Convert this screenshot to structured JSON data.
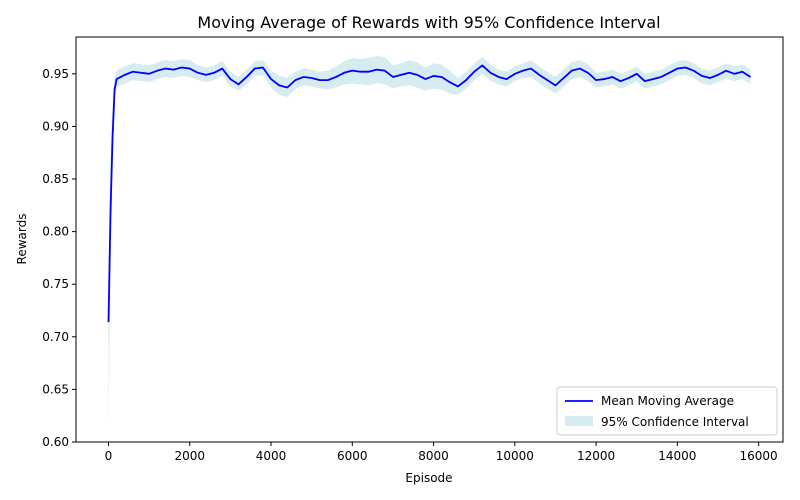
{
  "chart_data": {
    "type": "line",
    "title": "Moving Average of Rewards with 95% Confidence Interval",
    "xlabel": "Episode",
    "ylabel": "Rewards",
    "xlim": [
      -800,
      16600
    ],
    "ylim": [
      0.6,
      0.985
    ],
    "xticks": [
      0,
      2000,
      4000,
      6000,
      8000,
      10000,
      12000,
      14000,
      16000
    ],
    "xtick_labels": [
      "0",
      "2000",
      "4000",
      "6000",
      "8000",
      "10000",
      "12000",
      "14000",
      "16000"
    ],
    "yticks": [
      0.6,
      0.65,
      0.7,
      0.75,
      0.8,
      0.85,
      0.9,
      0.95
    ],
    "ytick_labels": [
      "0.60",
      "0.65",
      "0.70",
      "0.75",
      "0.80",
      "0.85",
      "0.90",
      "0.95"
    ],
    "grid": false,
    "legend_position": "lower-right",
    "series": [
      {
        "name": "Mean Moving Average",
        "kind": "line",
        "color": "#0000ff",
        "x": [
          0,
          50,
          100,
          150,
          200,
          300,
          400,
          600,
          800,
          1000,
          1200,
          1400,
          1600,
          1800,
          2000,
          2200,
          2400,
          2600,
          2800,
          3000,
          3200,
          3400,
          3600,
          3800,
          4000,
          4200,
          4400,
          4600,
          4800,
          5000,
          5200,
          5400,
          5600,
          5800,
          6000,
          6200,
          6400,
          6600,
          6800,
          7000,
          7200,
          7400,
          7600,
          7800,
          8000,
          8200,
          8400,
          8600,
          8800,
          9000,
          9200,
          9400,
          9600,
          9800,
          10000,
          10200,
          10400,
          10600,
          10800,
          11000,
          11200,
          11400,
          11600,
          11800,
          12000,
          12200,
          12400,
          12600,
          12800,
          13000,
          13200,
          13400,
          13600,
          13800,
          14000,
          14200,
          14400,
          14600,
          14800,
          15000,
          15200,
          15400,
          15600,
          15800
        ],
        "y": [
          0.714,
          0.82,
          0.89,
          0.935,
          0.945,
          0.947,
          0.949,
          0.952,
          0.951,
          0.95,
          0.953,
          0.955,
          0.954,
          0.956,
          0.955,
          0.951,
          0.949,
          0.951,
          0.955,
          0.945,
          0.94,
          0.947,
          0.955,
          0.956,
          0.945,
          0.939,
          0.937,
          0.944,
          0.947,
          0.946,
          0.944,
          0.944,
          0.947,
          0.951,
          0.953,
          0.952,
          0.952,
          0.954,
          0.953,
          0.947,
          0.949,
          0.951,
          0.949,
          0.945,
          0.948,
          0.947,
          0.942,
          0.938,
          0.944,
          0.952,
          0.958,
          0.951,
          0.947,
          0.945,
          0.95,
          0.953,
          0.955,
          0.949,
          0.944,
          0.939,
          0.946,
          0.953,
          0.955,
          0.951,
          0.944,
          0.945,
          0.947,
          0.943,
          0.946,
          0.95,
          0.943,
          0.945,
          0.947,
          0.951,
          0.955,
          0.956,
          0.953,
          0.948,
          0.946,
          0.949,
          0.953,
          0.95,
          0.952,
          0.947
        ]
      },
      {
        "name": "95% Confidence Interval",
        "kind": "band",
        "color": "#add8e6",
        "opacity": 0.5,
        "x": [
          0,
          50,
          100,
          150,
          200,
          300,
          400,
          600,
          800,
          1000,
          1200,
          1400,
          1600,
          1800,
          2000,
          2200,
          2400,
          2600,
          2800,
          3000,
          3200,
          3400,
          3600,
          3800,
          4000,
          4200,
          4400,
          4600,
          4800,
          5000,
          5200,
          5400,
          5600,
          5800,
          6000,
          6200,
          6400,
          6600,
          6800,
          7000,
          7200,
          7400,
          7600,
          7800,
          8000,
          8200,
          8400,
          8600,
          8800,
          9000,
          9200,
          9400,
          9600,
          9800,
          10000,
          10200,
          10400,
          10600,
          10800,
          11000,
          11200,
          11400,
          11600,
          11800,
          12000,
          12200,
          12400,
          12600,
          12800,
          13000,
          13200,
          13400,
          13600,
          13800,
          14000,
          14200,
          14400,
          14600,
          14800,
          15000,
          15200,
          15400,
          15600,
          15800
        ],
        "lower": [
          0.617,
          0.76,
          0.86,
          0.925,
          0.938,
          0.939,
          0.941,
          0.944,
          0.943,
          0.942,
          0.945,
          0.947,
          0.946,
          0.948,
          0.947,
          0.944,
          0.942,
          0.944,
          0.948,
          0.938,
          0.934,
          0.94,
          0.948,
          0.949,
          0.937,
          0.93,
          0.928,
          0.936,
          0.939,
          0.938,
          0.936,
          0.935,
          0.937,
          0.94,
          0.941,
          0.94,
          0.939,
          0.941,
          0.94,
          0.936,
          0.938,
          0.939,
          0.937,
          0.934,
          0.936,
          0.935,
          0.931,
          0.93,
          0.936,
          0.944,
          0.95,
          0.943,
          0.94,
          0.938,
          0.943,
          0.946,
          0.947,
          0.941,
          0.936,
          0.931,
          0.938,
          0.945,
          0.947,
          0.943,
          0.937,
          0.938,
          0.94,
          0.936,
          0.939,
          0.943,
          0.936,
          0.938,
          0.94,
          0.944,
          0.948,
          0.949,
          0.946,
          0.941,
          0.939,
          0.942,
          0.946,
          0.943,
          0.945,
          0.94
        ],
        "upper": [
          0.712,
          0.88,
          0.92,
          0.948,
          0.953,
          0.955,
          0.957,
          0.96,
          0.959,
          0.958,
          0.961,
          0.963,
          0.962,
          0.964,
          0.963,
          0.958,
          0.956,
          0.958,
          0.962,
          0.952,
          0.947,
          0.954,
          0.962,
          0.963,
          0.953,
          0.948,
          0.946,
          0.952,
          0.955,
          0.954,
          0.952,
          0.953,
          0.957,
          0.962,
          0.965,
          0.964,
          0.965,
          0.967,
          0.966,
          0.958,
          0.96,
          0.963,
          0.961,
          0.956,
          0.96,
          0.959,
          0.953,
          0.946,
          0.952,
          0.96,
          0.966,
          0.959,
          0.954,
          0.952,
          0.957,
          0.96,
          0.963,
          0.957,
          0.952,
          0.947,
          0.954,
          0.961,
          0.963,
          0.959,
          0.951,
          0.952,
          0.954,
          0.95,
          0.953,
          0.957,
          0.95,
          0.952,
          0.954,
          0.958,
          0.962,
          0.963,
          0.96,
          0.955,
          0.953,
          0.956,
          0.96,
          0.957,
          0.959,
          0.954
        ]
      }
    ]
  }
}
